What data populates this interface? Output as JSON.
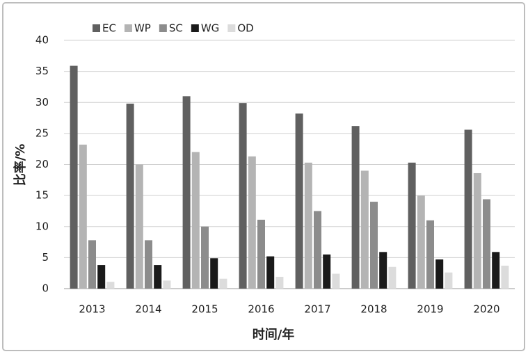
{
  "chart_data": {
    "type": "bar",
    "xlabel": "时间/年",
    "ylabel": "比率/%",
    "categories": [
      "2013",
      "2014",
      "2015",
      "2016",
      "2017",
      "2018",
      "2019",
      "2020"
    ],
    "series": [
      {
        "name": "EC",
        "color": "#606060",
        "values": [
          35.9,
          29.8,
          31,
          29.9,
          28.2,
          26.2,
          20.3,
          25.6
        ]
      },
      {
        "name": "WP",
        "color": "#b4b4b4",
        "values": [
          23.2,
          20,
          22,
          21.3,
          20.3,
          19,
          15,
          18.6
        ]
      },
      {
        "name": "SC",
        "color": "#8c8c8c",
        "values": [
          7.8,
          7.8,
          10,
          11.1,
          12.5,
          14,
          11,
          14.4
        ]
      },
      {
        "name": "WG",
        "color": "#1a1a1a",
        "values": [
          3.8,
          3.8,
          4.9,
          5.2,
          5.5,
          5.9,
          4.7,
          5.9
        ]
      },
      {
        "name": "OD",
        "color": "#dcdcdc",
        "values": [
          1.1,
          1.3,
          1.6,
          1.9,
          2.4,
          3.5,
          2.6,
          3.7
        ]
      }
    ],
    "ylim": [
      0,
      40
    ],
    "yticks": [
      0,
      5,
      10,
      15,
      20,
      25,
      30,
      35,
      40
    ],
    "grid": true
  }
}
